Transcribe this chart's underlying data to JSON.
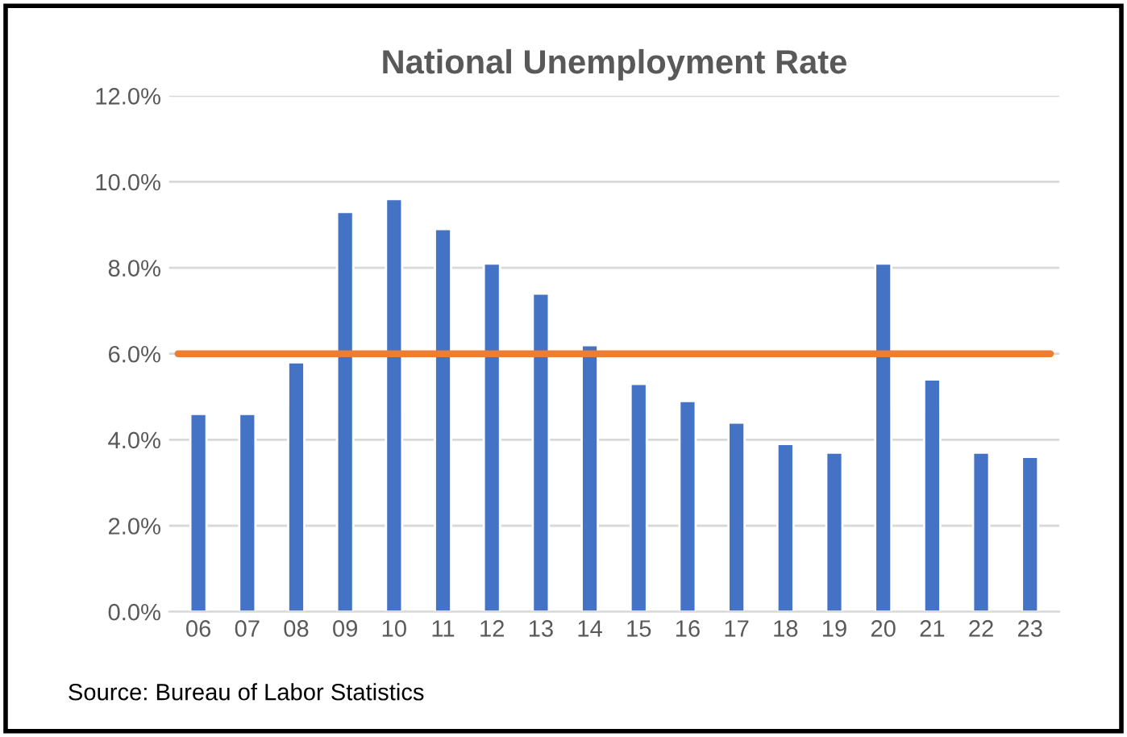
{
  "chart_data": {
    "type": "bar",
    "title": "National Unemployment Rate",
    "categories": [
      "06",
      "07",
      "08",
      "09",
      "10",
      "11",
      "12",
      "13",
      "14",
      "15",
      "16",
      "17",
      "18",
      "19",
      "20",
      "21",
      "22",
      "23"
    ],
    "values": [
      4.6,
      4.6,
      5.8,
      9.3,
      9.6,
      8.9,
      8.1,
      7.4,
      6.2,
      5.3,
      4.9,
      4.4,
      3.9,
      3.7,
      8.1,
      5.4,
      3.7,
      3.6
    ],
    "color": "#4472c4",
    "ylim": [
      0,
      12
    ],
    "yticks": [
      {
        "value": 0,
        "label": "0.0%"
      },
      {
        "value": 2,
        "label": "2.0%"
      },
      {
        "value": 4,
        "label": "4.0%"
      },
      {
        "value": 6,
        "label": "6.0%"
      },
      {
        "value": 8,
        "label": "8.0%"
      },
      {
        "value": 10,
        "label": "10.0%"
      },
      {
        "value": 12,
        "label": "12.0%"
      }
    ],
    "grid": "y",
    "ref_lines": [
      {
        "axis": "y",
        "value": 6.0,
        "label": null,
        "color": "#ed7d31"
      }
    ],
    "annotations": [
      "Source: Bureau of Labor Statistics"
    ]
  }
}
